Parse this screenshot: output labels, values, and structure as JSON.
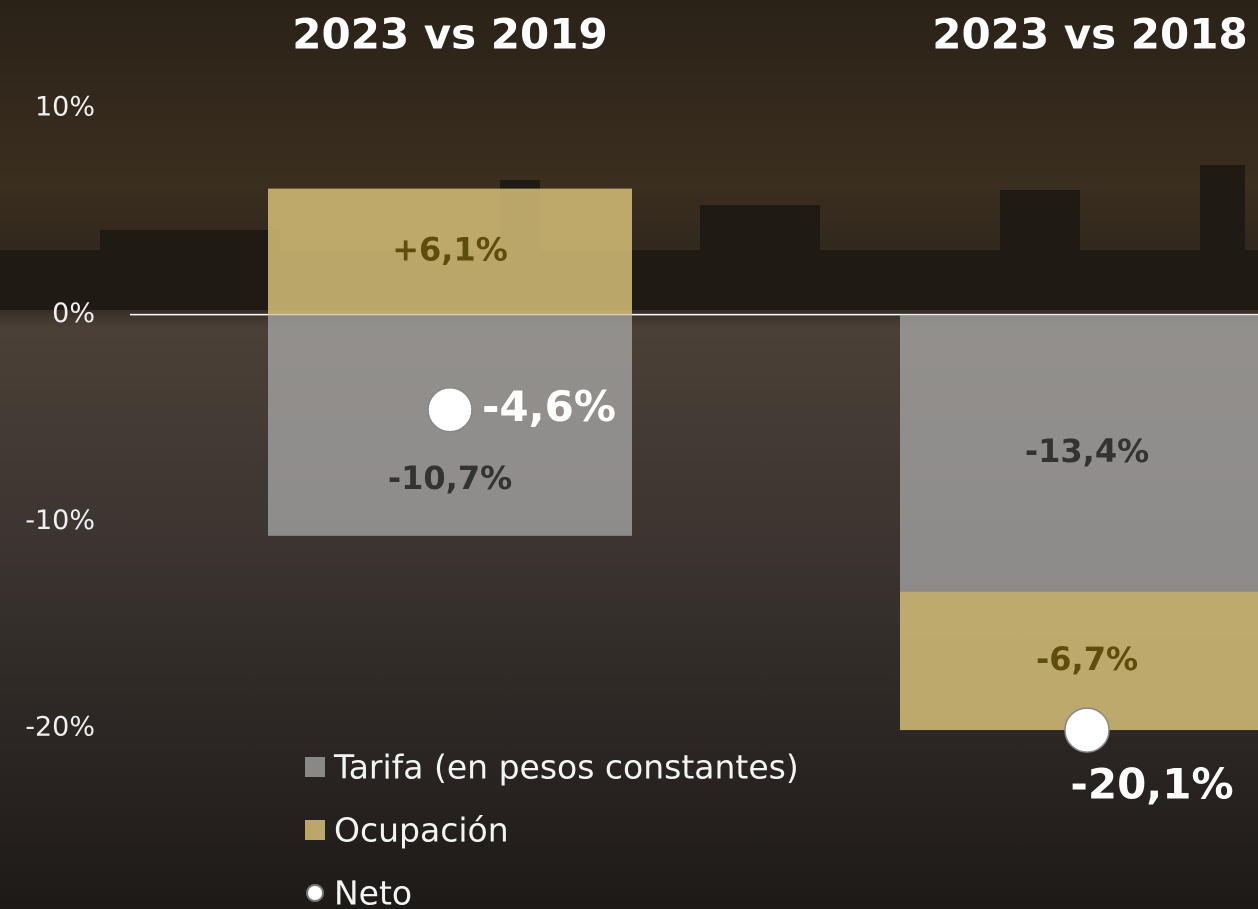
{
  "chart_data": {
    "type": "bar",
    "categories": [
      "2023 vs 2019",
      "2023 vs 2018"
    ],
    "ylim": [
      -20,
      10
    ],
    "yticks": [
      {
        "value": 10,
        "label": "10%"
      },
      {
        "value": 0,
        "label": "0%"
      },
      {
        "value": -10,
        "label": "-10%"
      },
      {
        "value": -20,
        "label": "-20%"
      }
    ],
    "series": [
      {
        "name": "Tarifa (en pesos constantes)",
        "color": "rgba(175,175,175,0.72)",
        "values": [
          -10.7,
          -13.4
        ],
        "value_labels": [
          "-10,7%",
          "-13,4%"
        ]
      },
      {
        "name": "Ocupación",
        "color": "rgba(214,192,120,0.85)",
        "values": [
          6.1,
          -6.7
        ],
        "value_labels": [
          "+6,1%",
          "-6,7%"
        ]
      },
      {
        "name": "Neto",
        "type": "scatter",
        "color": "#ffffff",
        "values": [
          -4.6,
          -20.1
        ],
        "value_labels": [
          "-4,6%",
          "-20,1%"
        ]
      }
    ]
  }
}
